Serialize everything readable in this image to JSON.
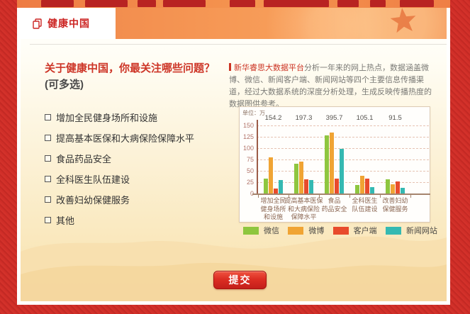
{
  "header": {
    "title": "健康中国"
  },
  "question": {
    "text_red": "关于健康中国，你最关注哪些问题？",
    "text_suffix": "(可多选)"
  },
  "options": [
    {
      "label": "增加全民健身场所和设施",
      "checked": false
    },
    {
      "label": "提高基本医保和大病保险保障水平",
      "checked": false
    },
    {
      "label": "食品药品安全",
      "checked": false
    },
    {
      "label": "全科医生队伍建设",
      "checked": false
    },
    {
      "label": "改善妇幼保健服务",
      "checked": false
    },
    {
      "label": "其他",
      "checked": false
    }
  ],
  "description": {
    "lead": "新华睿思大数据平台",
    "body": "分析一年来的网上热点，数据涵盖微博、微信、新闻客户端、新闻网站等四个主要信息传播渠道，经过大数据系统的深度分析处理，生成反映传播热度的数据图供参考。"
  },
  "chart_data": {
    "type": "bar",
    "unit_label": "单位：万",
    "ylim": [
      0,
      150
    ],
    "y_ticks": [
      150,
      125,
      100,
      75,
      50,
      25,
      0
    ],
    "grid": "dashed-horizontal",
    "legend_position": "bottom",
    "categories": [
      [
        "增加全民",
        "健身场所",
        "和设施"
      ],
      [
        "提高基本医保",
        "和大病保险",
        "保障水平"
      ],
      [
        "食品",
        "药品安全"
      ],
      [
        "全科医生",
        "队伍建设"
      ],
      [
        "改善妇幼",
        "保健服务"
      ]
    ],
    "totals": [
      154.2,
      197.3,
      395.7,
      105.1,
      91.5
    ],
    "series": [
      {
        "name": "微信",
        "color": "#8ec63f",
        "values": [
          33,
          65,
          128,
          19,
          31
        ]
      },
      {
        "name": "微博",
        "color": "#f0a434",
        "values": [
          80,
          71,
          135,
          39,
          21
        ]
      },
      {
        "name": "客户端",
        "color": "#e84b2c",
        "values": [
          11,
          31,
          33,
          33,
          26
        ]
      },
      {
        "name": "新闻网站",
        "color": "#35b9b2",
        "values": [
          30,
          30,
          99,
          14,
          13
        ]
      }
    ]
  },
  "submit": {
    "label": "提交"
  },
  "colors": {
    "page_red": "#d02e28",
    "banner_orange": "#f59553",
    "title_red": "#cc2422",
    "question_red": "#cd3527",
    "button_red": "#dc2e23"
  }
}
